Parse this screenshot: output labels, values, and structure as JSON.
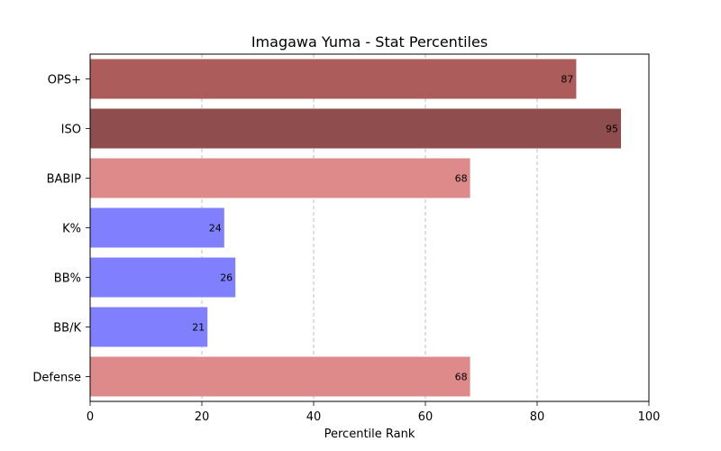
{
  "chart_data": {
    "type": "bar",
    "orientation": "horizontal",
    "title": "Imagawa Yuma - Stat Percentiles",
    "xlabel": "Percentile Rank",
    "ylabel": "",
    "xlim": [
      0,
      100
    ],
    "x_ticks": [
      "0",
      "20",
      "40",
      "60",
      "80",
      "100"
    ],
    "x_tick_values": [
      0,
      20,
      40,
      60,
      80,
      100
    ],
    "grid": "x-dashed",
    "categories": [
      "OPS+",
      "ISO",
      "BABIP",
      "K%",
      "BB%",
      "BB/K",
      "Defense"
    ],
    "values": [
      87,
      95,
      68,
      24,
      26,
      21,
      68
    ],
    "value_labels": [
      "87",
      "95",
      "68",
      "24",
      "26",
      "21",
      "68"
    ],
    "colors": [
      "#ad5c5c",
      "#8f4d4d",
      "#de8a8a",
      "#8080ff",
      "#8080ff",
      "#8080ff",
      "#de8a8a"
    ]
  }
}
